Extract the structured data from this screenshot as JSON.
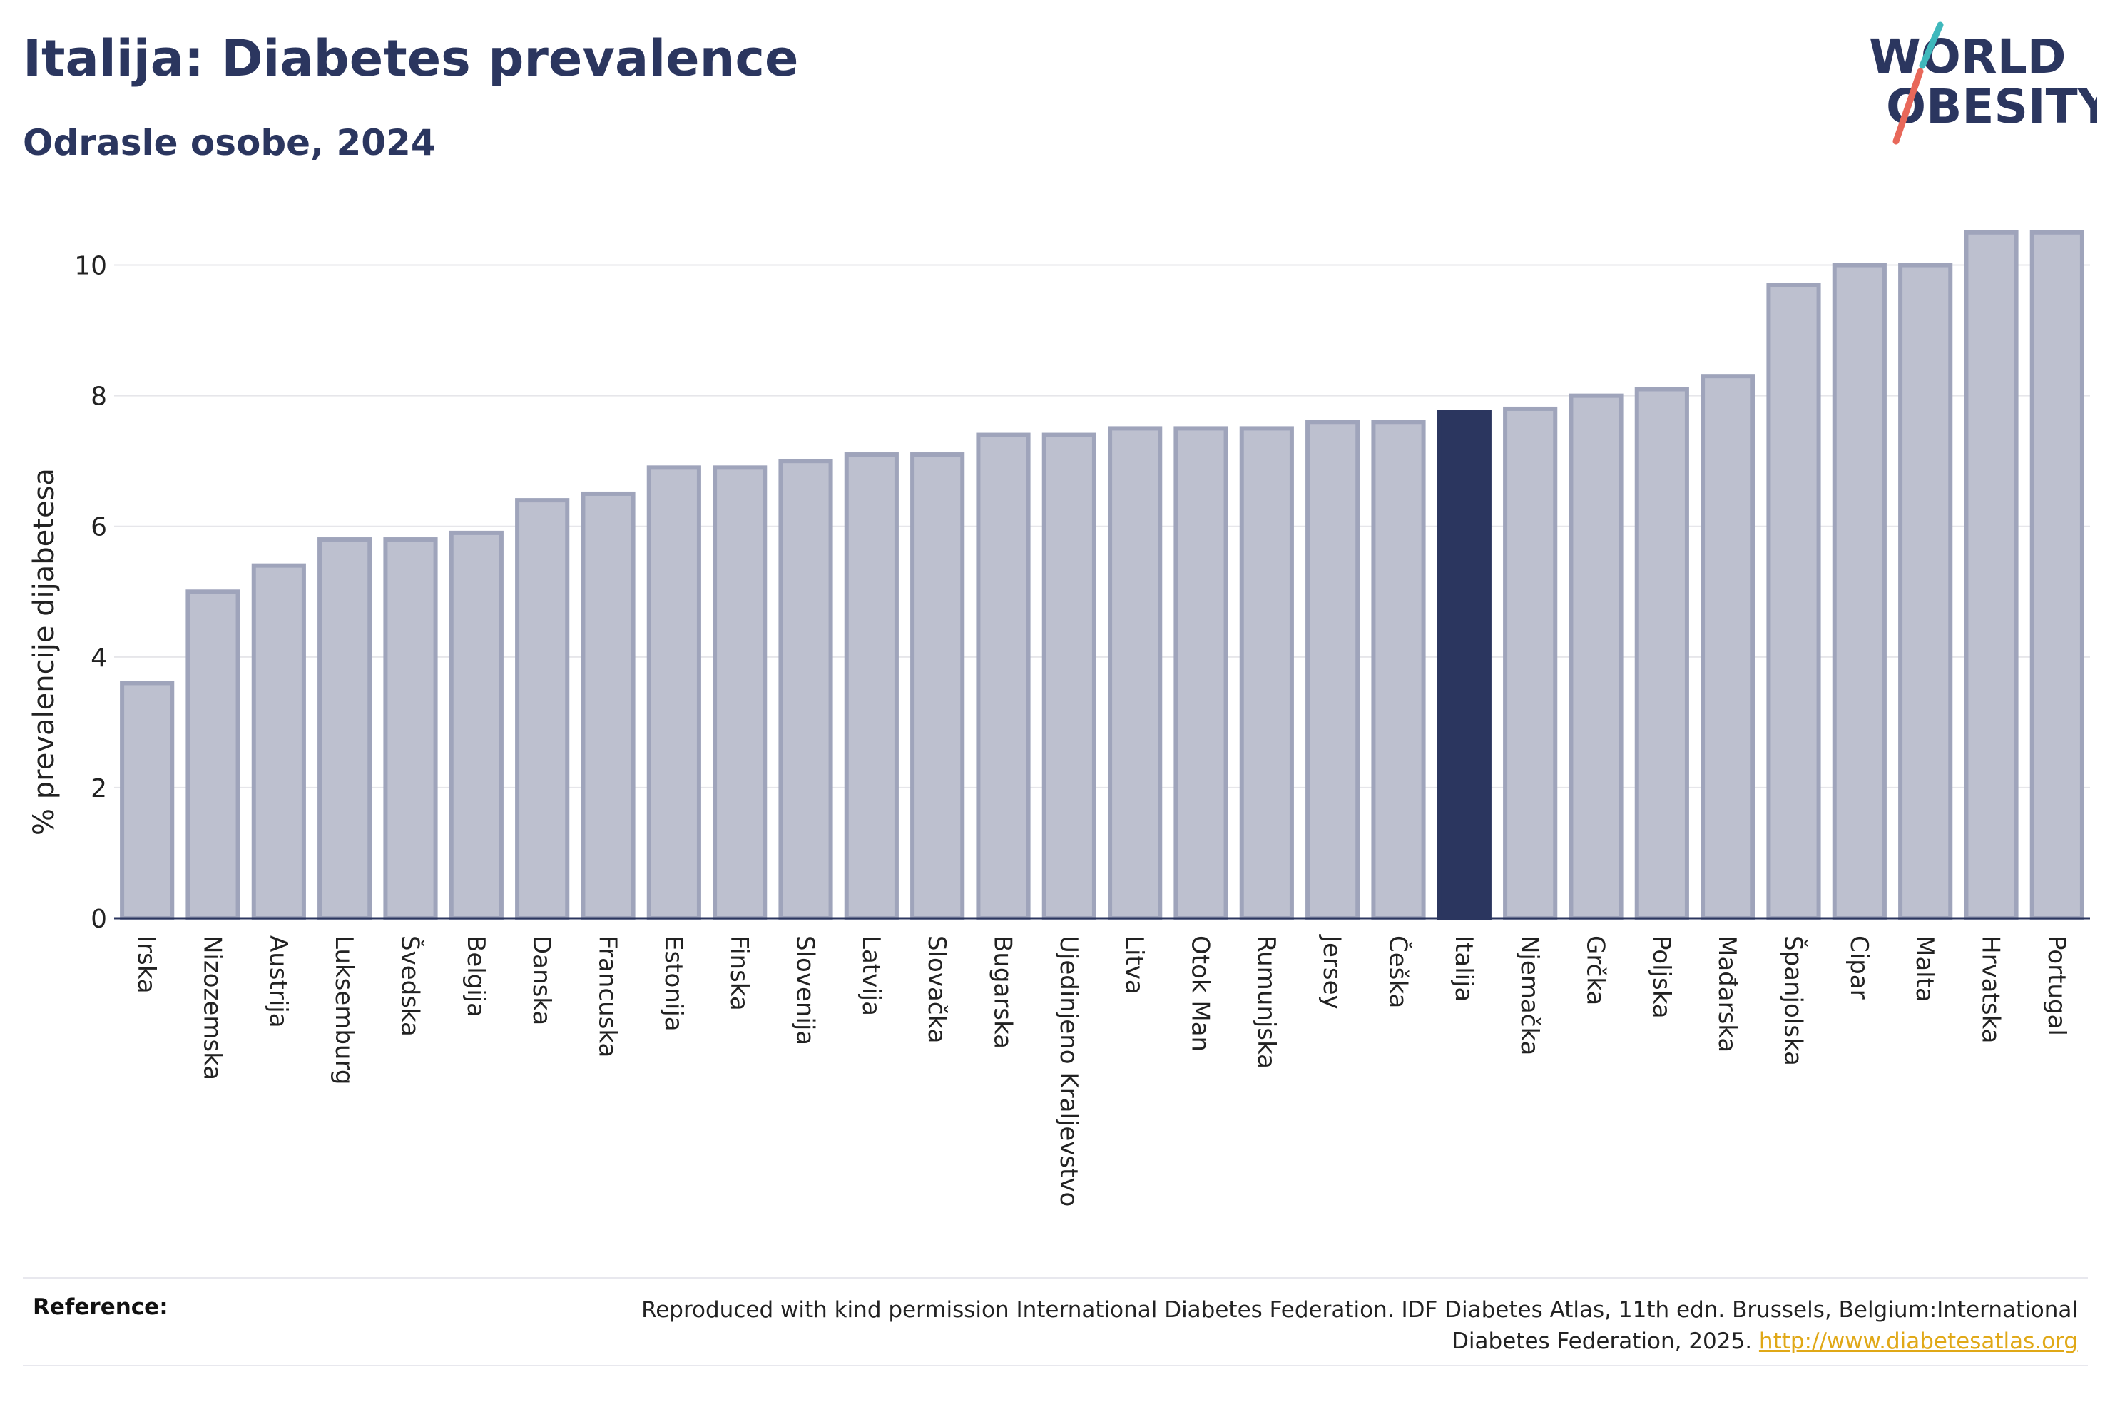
{
  "header": {
    "title": "Italija: Diabetes prevalence",
    "subtitle": "Odrasle osobe, 2024"
  },
  "logo": {
    "line1": "WORLD",
    "line2": "OBESITY",
    "accent_color": "#3fb8bc",
    "accent_color_2": "#e8685a"
  },
  "colors": {
    "bar": "#bdc0cf",
    "bar_stroke": "#9fa4bb",
    "highlight": "#2b365f",
    "text": "#2b365f",
    "gridline": "#e6e6ea"
  },
  "chart_data": {
    "type": "bar",
    "ylabel": "% prevalencije dijabetesa",
    "ylim": [
      0,
      11
    ],
    "yticks": [
      0,
      2,
      4,
      6,
      8,
      10
    ],
    "grid": true,
    "highlight_category": "Italija",
    "categories": [
      "Irska",
      "Nizozemska",
      "Austrija",
      "Luksemburg",
      "Švedska",
      "Belgija",
      "Danska",
      "Francuska",
      "Estonija",
      "Finska",
      "Slovenija",
      "Latvija",
      "Slovačka",
      "Bugarska",
      "Ujedinjeno Kraljevstvo",
      "Litva",
      "Otok Man",
      "Rumunjska",
      "Jersey",
      "Češka",
      "Italija",
      "Njemačka",
      "Grčka",
      "Poljska",
      "Mađarska",
      "Španjolska",
      "Cipar",
      "Malta",
      "Hrvatska",
      "Portugal"
    ],
    "values": [
      3.6,
      5.0,
      5.4,
      5.8,
      5.8,
      5.9,
      6.4,
      6.5,
      6.9,
      6.9,
      7.0,
      7.1,
      7.1,
      7.4,
      7.4,
      7.5,
      7.5,
      7.5,
      7.6,
      7.6,
      7.75,
      7.8,
      8.0,
      8.1,
      8.3,
      9.7,
      10.0,
      10.0,
      10.5,
      10.5
    ]
  },
  "footer": {
    "reference_label": "Reference:",
    "reference_text": "Reproduced with kind permission International Diabetes Federation. IDF Diabetes Atlas, 11th edn. Brussels, Belgium:International Diabetes Federation, 2025.",
    "reference_link": "http://www.diabetesatlas.org"
  }
}
